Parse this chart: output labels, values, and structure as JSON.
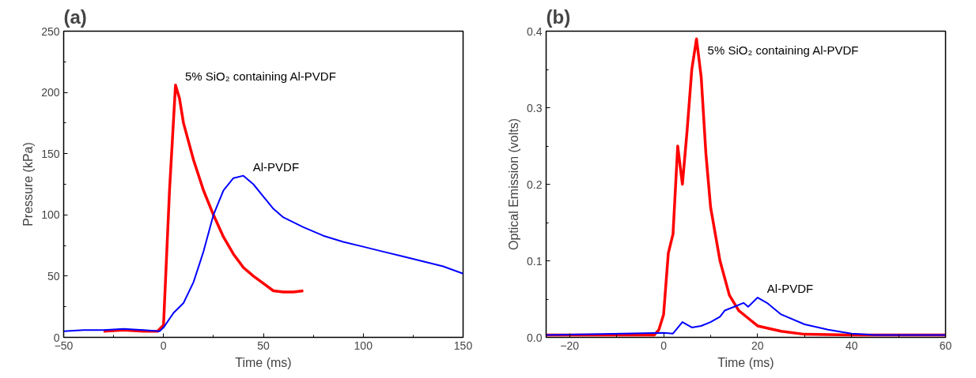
{
  "chart_data": [
    {
      "type": "line",
      "title": "(a)",
      "xlabel": "Time (ms)",
      "ylabel": "Pressure (kPa)",
      "xlim": [
        -50,
        150
      ],
      "ylim": [
        0,
        250
      ],
      "xticks": [
        -50,
        0,
        50,
        100,
        150
      ],
      "yticks": [
        0,
        50,
        100,
        150,
        200,
        250
      ],
      "grid": false,
      "series": [
        {
          "name": "5% SiO₂ containing Al-PVDF",
          "color": "#ff0000",
          "x": [
            -30,
            -20,
            -10,
            -3,
            0,
            3,
            6,
            8,
            10,
            15,
            20,
            25,
            30,
            35,
            40,
            45,
            50,
            55,
            60,
            65,
            70
          ],
          "values": [
            5,
            6,
            5,
            5,
            10,
            120,
            206,
            195,
            175,
            145,
            120,
            100,
            82,
            68,
            57,
            50,
            44,
            38,
            37,
            37,
            38
          ]
        },
        {
          "name": "Al-PVDF",
          "color": "#0000ff",
          "x": [
            -50,
            -40,
            -30,
            -20,
            -10,
            -2,
            0,
            5,
            10,
            15,
            20,
            25,
            30,
            35,
            40,
            45,
            50,
            55,
            60,
            70,
            80,
            90,
            100,
            110,
            120,
            130,
            140,
            150
          ],
          "values": [
            5,
            6,
            6,
            7,
            6,
            5,
            8,
            20,
            28,
            45,
            70,
            100,
            120,
            130,
            132,
            125,
            115,
            105,
            98,
            90,
            83,
            78,
            74,
            70,
            66,
            62,
            58,
            52
          ]
        }
      ]
    },
    {
      "type": "line",
      "title": "(b)",
      "xlabel": "Time (ms)",
      "ylabel": "Optical Emission (volts)",
      "xlim": [
        -25,
        60
      ],
      "ylim": [
        0,
        0.4
      ],
      "xticks": [
        -20,
        0,
        20,
        40,
        60
      ],
      "yticks": [
        {
          "value": 0,
          "label": "0.0"
        },
        0.1,
        0.2,
        0.3,
        0.4
      ],
      "grid": false,
      "series": [
        {
          "name": "5% SiO₂ containing Al-PVDF",
          "color": "#ff0000",
          "x": [
            -25,
            -2,
            -1,
            0,
            1,
            2,
            3,
            4,
            5,
            6,
            7,
            8,
            9,
            10,
            12,
            14,
            16,
            18,
            20,
            25,
            30,
            40,
            60
          ],
          "values": [
            0.003,
            0.003,
            0.01,
            0.03,
            0.11,
            0.135,
            0.25,
            0.2,
            0.27,
            0.35,
            0.39,
            0.34,
            0.24,
            0.17,
            0.1,
            0.055,
            0.035,
            0.025,
            0.015,
            0.008,
            0.004,
            0.003,
            0.003
          ]
        },
        {
          "name": "Al-PVDF",
          "color": "#0000ff",
          "x": [
            -25,
            0,
            2,
            4,
            6,
            8,
            10,
            12,
            13,
            15,
            17,
            18,
            20,
            22,
            25,
            30,
            35,
            40,
            45,
            60
          ],
          "values": [
            0.003,
            0.006,
            0.005,
            0.02,
            0.013,
            0.015,
            0.02,
            0.027,
            0.035,
            0.04,
            0.045,
            0.04,
            0.052,
            0.045,
            0.03,
            0.017,
            0.01,
            0.005,
            0.003,
            0.003
          ]
        }
      ]
    }
  ]
}
